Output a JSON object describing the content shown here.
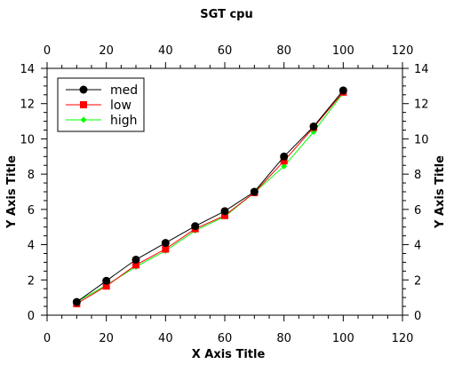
{
  "chart_data": {
    "type": "line",
    "title": "SGT cpu",
    "xlabel": "X Axis Title",
    "ylabel": "Y Axis Title",
    "xlim": [
      0,
      120
    ],
    "ylim": [
      0,
      14
    ],
    "xticks": [
      0,
      20,
      40,
      60,
      80,
      100,
      120
    ],
    "yticks": [
      0,
      2,
      4,
      6,
      8,
      10,
      12,
      14
    ],
    "grid": false,
    "legend": "top-left",
    "x": [
      10,
      20,
      30,
      40,
      50,
      60,
      70,
      80,
      90,
      100
    ],
    "series": [
      {
        "name": "med",
        "color": "#000000",
        "marker": "circle",
        "values": [
          0.75,
          1.95,
          3.15,
          4.1,
          5.05,
          5.9,
          7.0,
          9.0,
          10.7,
          12.75
        ]
      },
      {
        "name": "low",
        "color": "#ff0000",
        "marker": "square",
        "values": [
          0.65,
          1.65,
          2.85,
          3.75,
          4.9,
          5.65,
          6.95,
          8.75,
          10.65,
          12.65
        ]
      },
      {
        "name": "high",
        "color": "#00ff00",
        "marker": "diamond",
        "values": [
          0.75,
          1.7,
          2.75,
          3.65,
          4.8,
          5.6,
          6.95,
          8.45,
          10.4,
          12.6
        ]
      }
    ]
  }
}
